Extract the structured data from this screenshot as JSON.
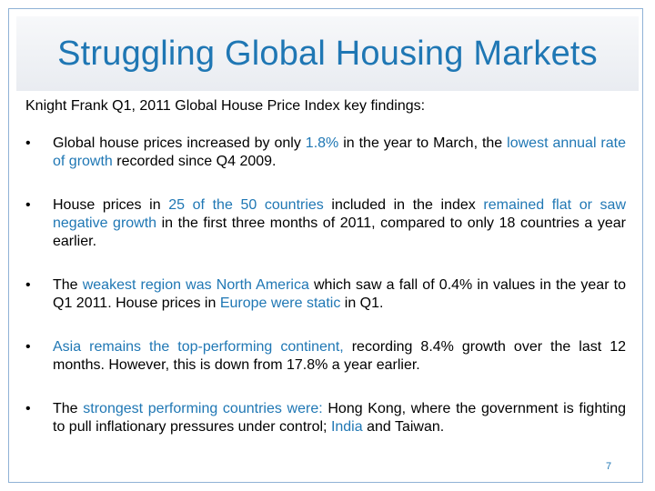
{
  "title": "Struggling Global Housing Markets",
  "intro": "Knight Frank Q1, 2011 Global House Price Index key findings:",
  "bullets": [
    [
      {
        "t": "Global house prices increased by only "
      },
      {
        "t": "1.8%",
        "hl": true
      },
      {
        "t": " in the year to March, the "
      },
      {
        "t": "lowest annual rate of growth",
        "hl": true
      },
      {
        "t": " recorded since Q4 2009."
      }
    ],
    [
      {
        "t": "House prices in "
      },
      {
        "t": "25 of the 50 countries",
        "hl": true
      },
      {
        "t": " included in the index "
      },
      {
        "t": "remained flat or saw negative growth",
        "hl": true
      },
      {
        "t": " in the first three months of 2011, compared to only 18 countries a year earlier."
      }
    ],
    [
      {
        "t": "The "
      },
      {
        "t": "weakest region was North America",
        "hl": true
      },
      {
        "t": " which saw a fall of 0.4% in values in the year to Q1 2011.  House prices in "
      },
      {
        "t": "Europe were static",
        "hl": true
      },
      {
        "t": " in Q1."
      }
    ],
    [
      {
        "t": "Asia remains the top-performing continent,",
        "hl": true
      },
      {
        "t": " recording 8.4% growth over the last 12 months. However, this is down from 17.8% a year earlier."
      }
    ],
    [
      {
        "t": "The "
      },
      {
        "t": "strongest performing countries were:",
        "hl": true
      },
      {
        "t": " Hong Kong, where the government is fighting to pull inflationary pressures under control; "
      },
      {
        "t": "India",
        "hl": true
      },
      {
        "t": " and Taiwan."
      }
    ]
  ],
  "page_number": "7",
  "colors": {
    "accent": "#1f77b4",
    "text": "#000000",
    "title_band": "#eceff3"
  }
}
